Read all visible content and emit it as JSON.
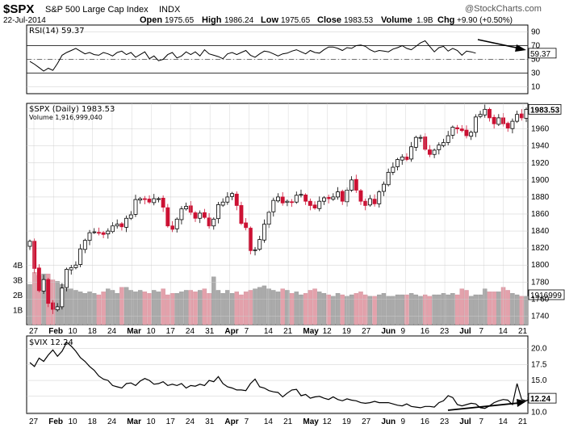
{
  "header": {
    "symbol": "$SPX",
    "name": "S&P 500 Large Cap Index",
    "exchange": "INDX",
    "watermark": "@StockCharts.com",
    "date": "22-Jul-2014",
    "open_label": "Open",
    "open": "1975.65",
    "high_label": "High",
    "high": "1986.24",
    "low_label": "Low",
    "low": "1975.65",
    "close_label": "Close",
    "close": "1983.53",
    "volume_label": "Volume",
    "volume": "1.9B",
    "chg_label": "Chg",
    "chg": "+9.90 (+0.50%)"
  },
  "colors": {
    "up": "#000000",
    "down": "#cc1133",
    "vol_up": "#aaaaaa",
    "vol_down": "#e3a1ab",
    "bg": "#ffffff",
    "grid": "#cccccc"
  },
  "chart_data": [
    {
      "id": "rsi",
      "type": "line",
      "legend": "RSI(14) 59.37",
      "last_label": "59.37",
      "ylim": [
        0,
        100
      ],
      "ticks": [
        "90",
        "70",
        "50",
        "30",
        "10"
      ],
      "ref_lines": [
        70,
        30
      ],
      "values": [
        47,
        43,
        38,
        33,
        37,
        34,
        44,
        56,
        60,
        63,
        66,
        62,
        58,
        60,
        57,
        56,
        60,
        58,
        55,
        60,
        62,
        57,
        60,
        53,
        57,
        61,
        51,
        55,
        48,
        50,
        57,
        60,
        52,
        55,
        61,
        57,
        61,
        55,
        64,
        58,
        56,
        54,
        51,
        58,
        60,
        57,
        60,
        63,
        56,
        53,
        58,
        62,
        61,
        58,
        55,
        58,
        59,
        62,
        64,
        61,
        58,
        63,
        60,
        59,
        64,
        68,
        68,
        66,
        63,
        67,
        66,
        70,
        71,
        69,
        64,
        61,
        63,
        62,
        61,
        65,
        67,
        70,
        66,
        64,
        69,
        74,
        77,
        69,
        61,
        67,
        69,
        62,
        66,
        63,
        56,
        62,
        61,
        59
      ],
      "annotation": "arrow pointing down toward latest RSI value"
    },
    {
      "id": "price",
      "type": "candlestick",
      "legend_price": "$SPX (Daily) 1983.53",
      "legend_volume": "Volume 1,916,999,040",
      "last_label": "1983.53",
      "ylim": [
        1730,
        1990
      ],
      "ticks": [
        "1960",
        "1940",
        "1920",
        "1900",
        "1880",
        "1860",
        "1840",
        "1820",
        "1800",
        "1780",
        "1760",
        "1740"
      ],
      "volume_ticks": [
        "4B",
        "3B",
        "2B",
        "1B"
      ],
      "volume_last_label": "1916999",
      "x_labels": [
        "27",
        "Feb",
        "10",
        "18",
        "24",
        "Mar",
        "10",
        "17",
        "24",
        "31",
        "Apr",
        "7",
        "14",
        "21",
        "May",
        "12",
        "19",
        "27",
        "Jun",
        "9",
        "16",
        "23",
        "Jul",
        "7",
        "14",
        "21"
      ],
      "closes": [
        1828,
        1796,
        1770,
        1783,
        1755,
        1748,
        1751,
        1773,
        1795,
        1797,
        1800,
        1819,
        1829,
        1838,
        1839,
        1838,
        1836,
        1840,
        1846,
        1848,
        1845,
        1855,
        1859,
        1877,
        1878,
        1877,
        1874,
        1878,
        1878,
        1868,
        1846,
        1842,
        1854,
        1866,
        1869,
        1862,
        1855,
        1861,
        1856,
        1846,
        1854,
        1871,
        1874,
        1880,
        1884,
        1870,
        1849,
        1844,
        1817,
        1818,
        1830,
        1848,
        1862,
        1876,
        1880,
        1873,
        1875,
        1874,
        1882,
        1883,
        1875,
        1870,
        1867,
        1875,
        1879,
        1878,
        1880,
        1886,
        1875,
        1888,
        1900,
        1888,
        1875,
        1870,
        1878,
        1872,
        1886,
        1895,
        1909,
        1915,
        1924,
        1927,
        1924,
        1939,
        1950,
        1950,
        1936,
        1930,
        1935,
        1941,
        1944,
        1952,
        1962,
        1960,
        1958,
        1952,
        1956,
        1974,
        1977,
        1983,
        1973,
        1966,
        1973,
        1966,
        1961,
        1969,
        1977,
        1973,
        1983
      ],
      "volumes": [
        2.7,
        3.5,
        3.3,
        3.4,
        3.4,
        3.0,
        2.9,
        2.7,
        2.4,
        2.4,
        2.3,
        2.2,
        2.1,
        2.2,
        2.1,
        2.0,
        2.2,
        2.4,
        2.3,
        2.1,
        2.5,
        2.5,
        2.3,
        2.2,
        2.3,
        2.2,
        2.1,
        2.3,
        2.2,
        2.4,
        2.0,
        2.1,
        2.1,
        2.2,
        2.3,
        2.3,
        2.2,
        2.3,
        2.4,
        2.1,
        3.2,
        2.3,
        2.1,
        2.3,
        2.1,
        2.2,
        2.0,
        2.2,
        2.3,
        2.4,
        2.5,
        2.6,
        2.4,
        2.3,
        2.2,
        2.4,
        2.3,
        2.1,
        2.2,
        2.0,
        2.1,
        2.3,
        2.4,
        2.2,
        2.1,
        2.0,
        1.9,
        2.1,
        2.0,
        1.9,
        2.0,
        2.1,
        2.2,
        2.0,
        1.9,
        1.9,
        2.0,
        2.1,
        1.9,
        1.9,
        2.0,
        2.0,
        2.0,
        2.1,
        2.0,
        1.9,
        2.0,
        1.9,
        2.0,
        2.0,
        2.1,
        2.0,
        2.1,
        2.0,
        2.4,
        2.3,
        1.9,
        2.0,
        2.0,
        2.4,
        2.2,
        2.2,
        2.2,
        2.5,
        2.3,
        2.1,
        2.0,
        1.9,
        1.9
      ]
    },
    {
      "id": "vix",
      "type": "line",
      "legend": "$VIX 12.24",
      "last_label": "12.24",
      "ylim": [
        9.8,
        22.0
      ],
      "ticks": [
        "20.0",
        "17.5",
        "15.0",
        "12.5",
        "10.0"
      ],
      "x_labels": [
        "27",
        "Feb",
        "10",
        "18",
        "24",
        "Mar",
        "10",
        "17",
        "24",
        "31",
        "Apr",
        "7",
        "14",
        "21",
        "May",
        "12",
        "19",
        "27",
        "Jun",
        "9",
        "16",
        "23",
        "Jul",
        "7",
        "14",
        "21"
      ],
      "values": [
        17.8,
        17.2,
        18.5,
        18.0,
        19.0,
        19.8,
        18.8,
        19.6,
        21.0,
        20.4,
        19.6,
        18.6,
        18.0,
        17.2,
        16.6,
        15.7,
        15.2,
        15.0,
        14.2,
        14.0,
        13.8,
        14.5,
        14.6,
        14.2,
        14.9,
        15.3,
        15.0,
        14.4,
        14.5,
        14.8,
        14.2,
        14.4,
        14.2,
        14.5,
        13.8,
        14.2,
        14.1,
        14.4,
        14.2,
        15.0,
        14.8,
        15.6,
        14.5,
        14.0,
        13.8,
        13.5,
        13.5,
        13.4,
        14.5,
        15.2,
        14.0,
        13.8,
        13.4,
        13.2,
        13.1,
        12.4,
        13.0,
        13.5,
        13.6,
        12.6,
        12.8,
        12.2,
        12.4,
        12.5,
        12.2,
        12.0,
        12.4,
        12.0,
        11.8,
        12.1,
        11.9,
        11.8,
        11.5,
        11.4,
        11.5,
        11.7,
        11.5,
        11.5,
        11.5,
        11.3,
        11.1,
        11.0,
        11.3,
        10.9,
        10.8,
        10.7,
        10.9,
        10.9,
        10.8,
        11.5,
        11.8,
        12.6,
        12.3,
        11.2,
        11.0,
        11.2,
        11.4,
        11.3,
        10.7,
        10.6,
        11.0,
        11.5,
        11.8,
        12.0,
        11.9,
        11.2,
        14.5,
        12.0,
        11.8,
        12.2,
        12.2
      ],
      "annotation": "arrow pointing up toward latest VIX value"
    }
  ]
}
